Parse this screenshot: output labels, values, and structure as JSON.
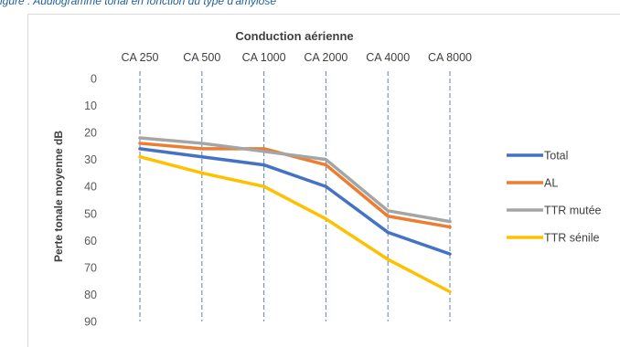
{
  "caption": "igure : Audiogramme tonal en fonction du type d'amylose",
  "chart_data": {
    "type": "line",
    "title": "Conduction aérienne",
    "xlabel": "",
    "ylabel": "Perte tonale moyenne dB",
    "categories": [
      "CA 250",
      "CA 500",
      "CA 1000",
      "CA 2000",
      "CA 4000",
      "CA 8000"
    ],
    "ylim": [
      0,
      90
    ],
    "y_inverted": true,
    "yticks": [
      0,
      10,
      20,
      30,
      40,
      50,
      60,
      70,
      80,
      90
    ],
    "x_axis_position": "top",
    "grid": "vertical dashed",
    "legend_position": "right",
    "series": [
      {
        "name": "Total",
        "color": "#4472C4",
        "values": [
          26,
          29,
          32,
          40,
          57,
          65
        ]
      },
      {
        "name": "AL",
        "color": "#ED7D31",
        "values": [
          24,
          26,
          26,
          32,
          51,
          55
        ]
      },
      {
        "name": "TTR mutée",
        "color": "#A5A5A5",
        "values": [
          22,
          24,
          27,
          30,
          49,
          53
        ]
      },
      {
        "name": "TTR sénile",
        "color": "#FFC000",
        "values": [
          29,
          35,
          40,
          52,
          67,
          79
        ]
      }
    ]
  }
}
